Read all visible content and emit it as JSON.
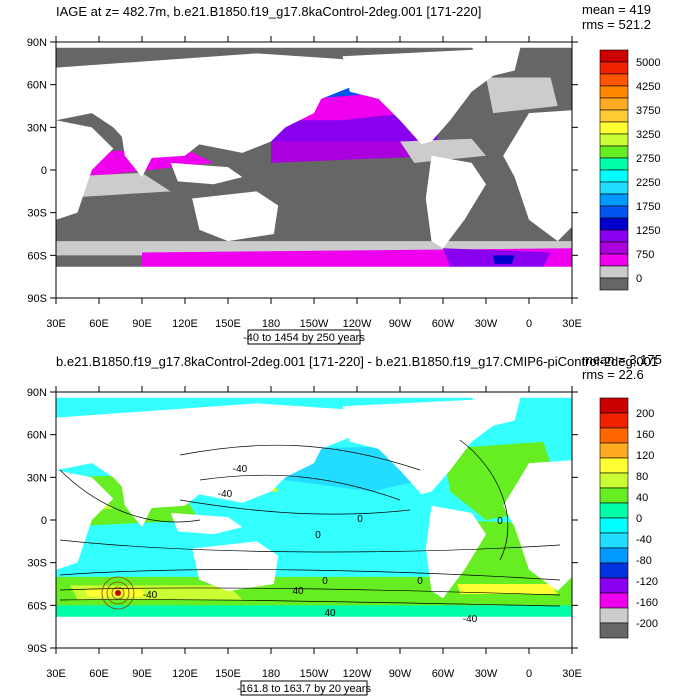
{
  "colors": {
    "land": "#ffffff",
    "ocean_top_base": "#666666",
    "ocean_bottom_base": "#33ffff"
  },
  "top_panel": {
    "title": "IAGE at z= 482.7m, b.e21.B1850.f19_g17.8kaControl-2deg.001 [171-220]",
    "mean_label": "mean = 419",
    "rms_label": "rms = 521.2",
    "range_label": "-40 to 1454 by 250 years",
    "lat_labels": [
      "90N",
      "60N",
      "30N",
      "0",
      "30S",
      "60S",
      "90S"
    ],
    "lon_labels": [
      "30E",
      "60E",
      "90E",
      "120E",
      "150E",
      "180",
      "150W",
      "120W",
      "90W",
      "60W",
      "30W",
      "0",
      "30E"
    ],
    "colorbar": {
      "labels": [
        "5000",
        "4250",
        "3750",
        "3250",
        "2750",
        "2250",
        "1750",
        "1250",
        "750",
        "0"
      ],
      "colors": [
        "#cc0000",
        "#ee2200",
        "#ff5500",
        "#ff8800",
        "#ffaa22",
        "#ffcc33",
        "#ffff33",
        "#ccff33",
        "#66ee22",
        "#00ffaa",
        "#00ffff",
        "#22ddff",
        "#0099ff",
        "#0055ee",
        "#0000cc",
        "#8800ee",
        "#aa00dd",
        "#ee00ee",
        "#cccccc",
        "#666666"
      ]
    }
  },
  "bottom_panel": {
    "title": "b.e21.B1850.f19_g17.8kaControl-2deg.001 [171-220] - b.e21.B1850.f19_g17.CMIP6-piControl-2deg.001",
    "mean_label": "mean = 3.175",
    "rms_label": "rms = 22.6",
    "range_label": "-161.8 to 163.7 by 20 years",
    "lat_labels": [
      "90N",
      "60N",
      "30N",
      "0",
      "30S",
      "60S",
      "90S"
    ],
    "lon_labels": [
      "30E",
      "60E",
      "90E",
      "120E",
      "150E",
      "180",
      "150W",
      "120W",
      "90W",
      "60W",
      "30W",
      "0",
      "30E"
    ],
    "colorbar": {
      "labels": [
        "200",
        "160",
        "120",
        "80",
        "40",
        "0",
        "-40",
        "-80",
        "-120",
        "-160",
        "-200"
      ],
      "colors": [
        "#cc0000",
        "#ee2200",
        "#ff6600",
        "#ffaa22",
        "#ffff33",
        "#ccff33",
        "#66ee22",
        "#00ffaa",
        "#00ffff",
        "#22ddff",
        "#0099ff",
        "#0033dd",
        "#8800ee",
        "#ee00ee",
        "#cccccc",
        "#666666"
      ]
    },
    "contour_labels": [
      "-40",
      "-40",
      "0",
      "0",
      "0",
      "0",
      "0",
      "40",
      "40",
      "-40",
      "-40"
    ]
  }
}
